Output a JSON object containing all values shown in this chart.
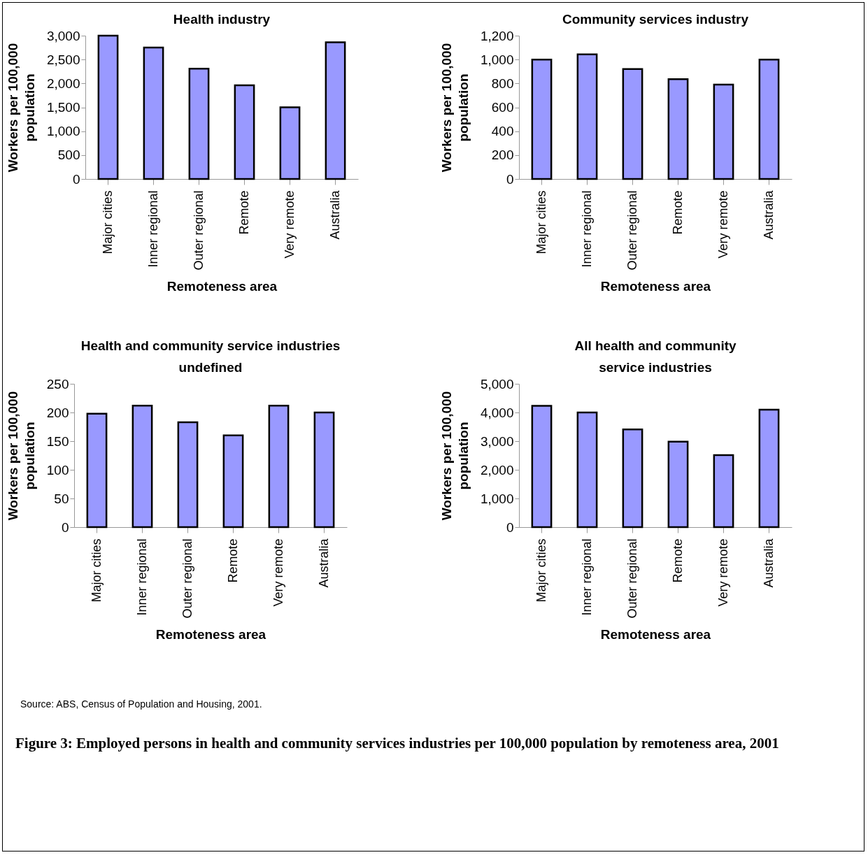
{
  "chart_data": [
    {
      "type": "bar",
      "title": "Health industry",
      "xlabel": "Remoteness area",
      "ylabel": "Workers per 100,000\npopulation",
      "categories": [
        "Major cities",
        "Inner regional",
        "Outer regional",
        "Remote",
        "Very remote",
        "Australia"
      ],
      "values": [
        3000,
        2750,
        2310,
        1960,
        1500,
        2860
      ],
      "color": "#9999ff",
      "ylim": [
        0,
        3000
      ],
      "yticks": [
        {
          "value": 0,
          "label": "0"
        },
        {
          "value": 500,
          "label": "500"
        },
        {
          "value": 1000,
          "label": "1,000"
        },
        {
          "value": 1500,
          "label": "1,500"
        },
        {
          "value": 2000,
          "label": "2,000"
        },
        {
          "value": 2500,
          "label": "2,500"
        },
        {
          "value": 3000,
          "label": "3,000"
        }
      ],
      "grid": false
    },
    {
      "type": "bar",
      "title": "Community services industry",
      "xlabel": "Remoteness area",
      "ylabel": "Workers per 100,000\npopulation",
      "categories": [
        "Major cities",
        "Inner regional",
        "Outer regional",
        "Remote",
        "Very remote",
        "Australia"
      ],
      "values": [
        1000,
        1044,
        920,
        836,
        790,
        1000
      ],
      "color": "#9999ff",
      "ylim": [
        0,
        1200
      ],
      "yticks": [
        {
          "value": 0,
          "label": "0"
        },
        {
          "value": 200,
          "label": "200"
        },
        {
          "value": 400,
          "label": "400"
        },
        {
          "value": 600,
          "label": "600"
        },
        {
          "value": 800,
          "label": "800"
        },
        {
          "value": 1000,
          "label": "1,000"
        },
        {
          "value": 1200,
          "label": "1,200"
        }
      ],
      "grid": false
    },
    {
      "type": "bar",
      "title": "Health and community service industries\nundefined",
      "xlabel": "Remoteness area",
      "ylabel": "Workers per 100,000\npopulation",
      "categories": [
        "Major cities",
        "Inner regional",
        "Outer regional",
        "Remote",
        "Very remote",
        "Australia"
      ],
      "values": [
        198,
        212,
        183,
        160,
        212,
        200
      ],
      "color": "#9999ff",
      "ylim": [
        0,
        250
      ],
      "yticks": [
        0,
        50,
        100,
        150,
        200,
        250
      ],
      "grid": false
    },
    {
      "type": "bar",
      "title": "All health and community\nservice industries",
      "xlabel": "Remoteness area",
      "ylabel": "Workers per 100,000\npopulation",
      "categories": [
        "Major cities",
        "Inner regional",
        "Outer regional",
        "Remote",
        "Very remote",
        "Australia"
      ],
      "values": [
        4230,
        4000,
        3410,
        2980,
        2510,
        4100
      ],
      "color": "#9999ff",
      "ylim": [
        0,
        5000
      ],
      "yticks": [
        {
          "value": 0,
          "label": "0"
        },
        {
          "value": 1000,
          "label": "1,000"
        },
        {
          "value": 2000,
          "label": "2,000"
        },
        {
          "value": 3000,
          "label": "3,000"
        },
        {
          "value": 4000,
          "label": "4,000"
        },
        {
          "value": 5000,
          "label": "5,000"
        }
      ],
      "grid": false,
      "annotations": [
        "Source: ABS, Census of Population and Housing, 2001.",
        "Figure 3:  Employed persons in health and community services industries per 100,000 population by remoteness area, 2001"
      ]
    }
  ]
}
